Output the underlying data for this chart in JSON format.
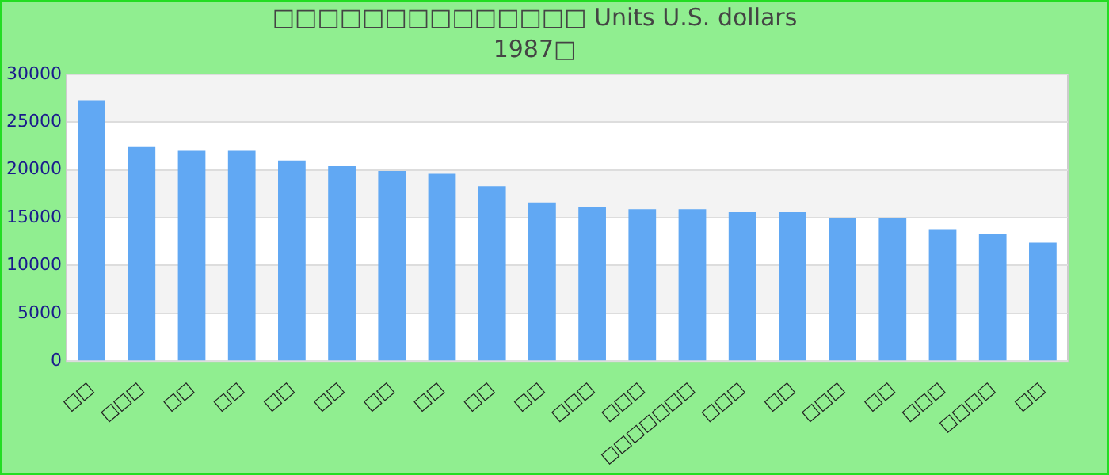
{
  "chart_data": {
    "type": "bar",
    "title": "□□□□□□□□□□□□□□ Units U.S. dollars",
    "subtitle": "1987□",
    "categories": [
      "□□",
      "□□□",
      "□□",
      "□□",
      "□□",
      "□□",
      "□□",
      "□□",
      "□□",
      "□□",
      "□□□",
      "□□□",
      "□□□□□□□",
      "□□□",
      "□□",
      "□□□",
      "□□",
      "□□□",
      "□□□□",
      "□□"
    ],
    "values": [
      27300,
      22400,
      22000,
      22000,
      21000,
      20400,
      19900,
      19600,
      18300,
      16600,
      16100,
      15900,
      15900,
      15600,
      15600,
      15000,
      15000,
      13800,
      13300,
      12400
    ],
    "color": "#61a8f3",
    "ylim": [
      0,
      30000
    ],
    "yticks": [
      0,
      5000,
      10000,
      15000,
      20000,
      25000,
      30000
    ],
    "grid": true
  }
}
